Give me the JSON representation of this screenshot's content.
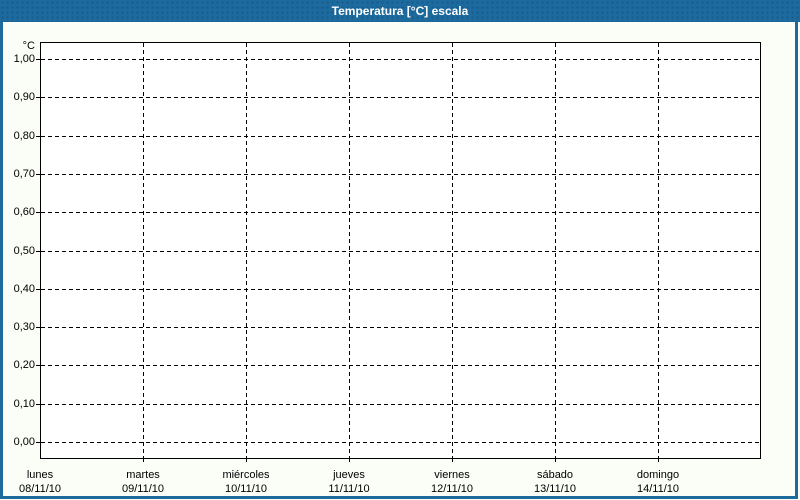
{
  "titlebar": {
    "title": "Temperatura [°C] escala"
  },
  "colors": {
    "titlebar_bg": "#1d6a9e",
    "titlebar_text": "#ffffff",
    "window_border": "#1d6a9e",
    "window_bg": "#fbfdf7",
    "plot_bg": "#ffffff",
    "grid_color": "#000000",
    "label_color": "#000000"
  },
  "chart_data": {
    "type": "line",
    "title": "Temperatura [°C] escala",
    "xlabel": "",
    "ylabel": "°C",
    "ylim": [
      0,
      1
    ],
    "ytick_step": 0.1,
    "ytick_labels": [
      "0,00",
      "0,10",
      "0,20",
      "0,30",
      "0,40",
      "0,50",
      "0,60",
      "0,70",
      "0,80",
      "0,90",
      "1,00"
    ],
    "x_categories": [
      {
        "day": "lunes",
        "date": "08/11/10"
      },
      {
        "day": "martes",
        "date": "09/11/10"
      },
      {
        "day": "miércoles",
        "date": "10/11/10"
      },
      {
        "day": "jueves",
        "date": "11/11/10"
      },
      {
        "day": "viernes",
        "date": "12/11/10"
      },
      {
        "day": "sábado",
        "date": "13/11/10"
      },
      {
        "day": "domingo",
        "date": "14/11/10"
      }
    ],
    "series": [],
    "grid": "dashed",
    "legend": "none"
  }
}
